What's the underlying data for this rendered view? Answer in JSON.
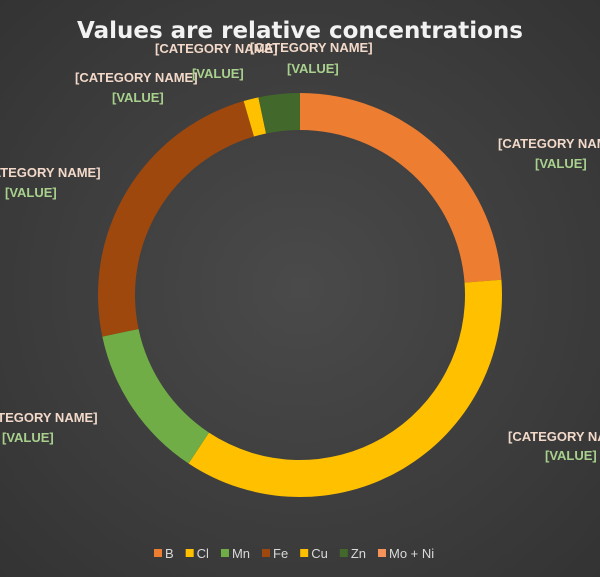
{
  "chart_data": {
    "type": "pie",
    "subtype": "doughnut",
    "title": "Values are relative concentrations",
    "categories": [
      "B",
      "Cl",
      "Mn",
      "Fe",
      "Cu",
      "Zn",
      "Mo + Ni"
    ],
    "values": [
      23.8,
      35.5,
      12.4,
      23.8,
      1.2,
      3.3,
      0
    ],
    "colors": [
      "#ED7D31",
      "#FFC000",
      "#70AD47",
      "#9E480E",
      "#FFC000",
      "#43682B",
      "#F4945A"
    ],
    "data_labels": [
      {
        "category": "[CATEGORY NAME]",
        "value": "[VALUE]"
      },
      {
        "category": "[CATEGORY NAME]",
        "value": "[VALUE]"
      },
      {
        "category": "[CATEGORY NAME]",
        "value": "[VALUE]"
      },
      {
        "category": "[CATEGORY NAME]",
        "value": "[VALUE]"
      },
      {
        "category": "[CATEGORY NAME]",
        "value": "[VALUE]"
      },
      {
        "category": "[CATEGORY NAME]",
        "value": "[VALUE]"
      },
      {
        "category": "[CATEGORY NAME]",
        "value": "[VALUE]"
      }
    ],
    "legend_position": "bottom"
  }
}
